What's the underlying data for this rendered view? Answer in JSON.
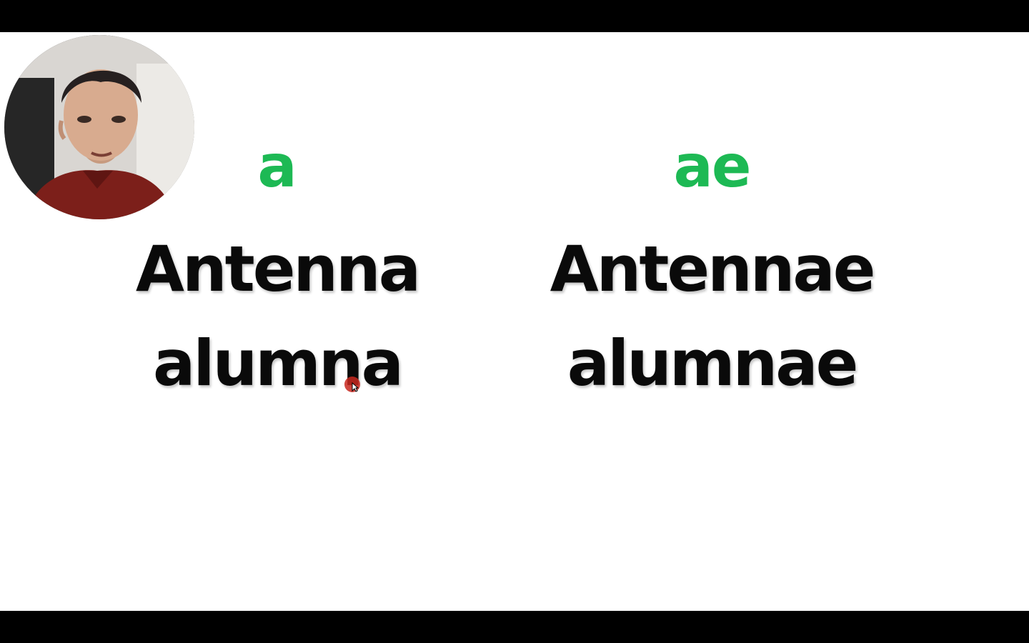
{
  "slide": {
    "endings": {
      "singular": "a",
      "plural": "ae"
    },
    "singular_words": [
      "Antenna",
      "alumna"
    ],
    "plural_words": [
      "Antennae",
      "alumnae"
    ]
  },
  "colors": {
    "ending_green": "#1db954",
    "word_black": "#0a0a0a",
    "background": "#ffffff",
    "letterbox": "#000000",
    "cursor_highlight": "#c8281e"
  },
  "icons": {
    "cursor": "mouse-pointer-icon",
    "webcam": "presenter-webcam"
  }
}
